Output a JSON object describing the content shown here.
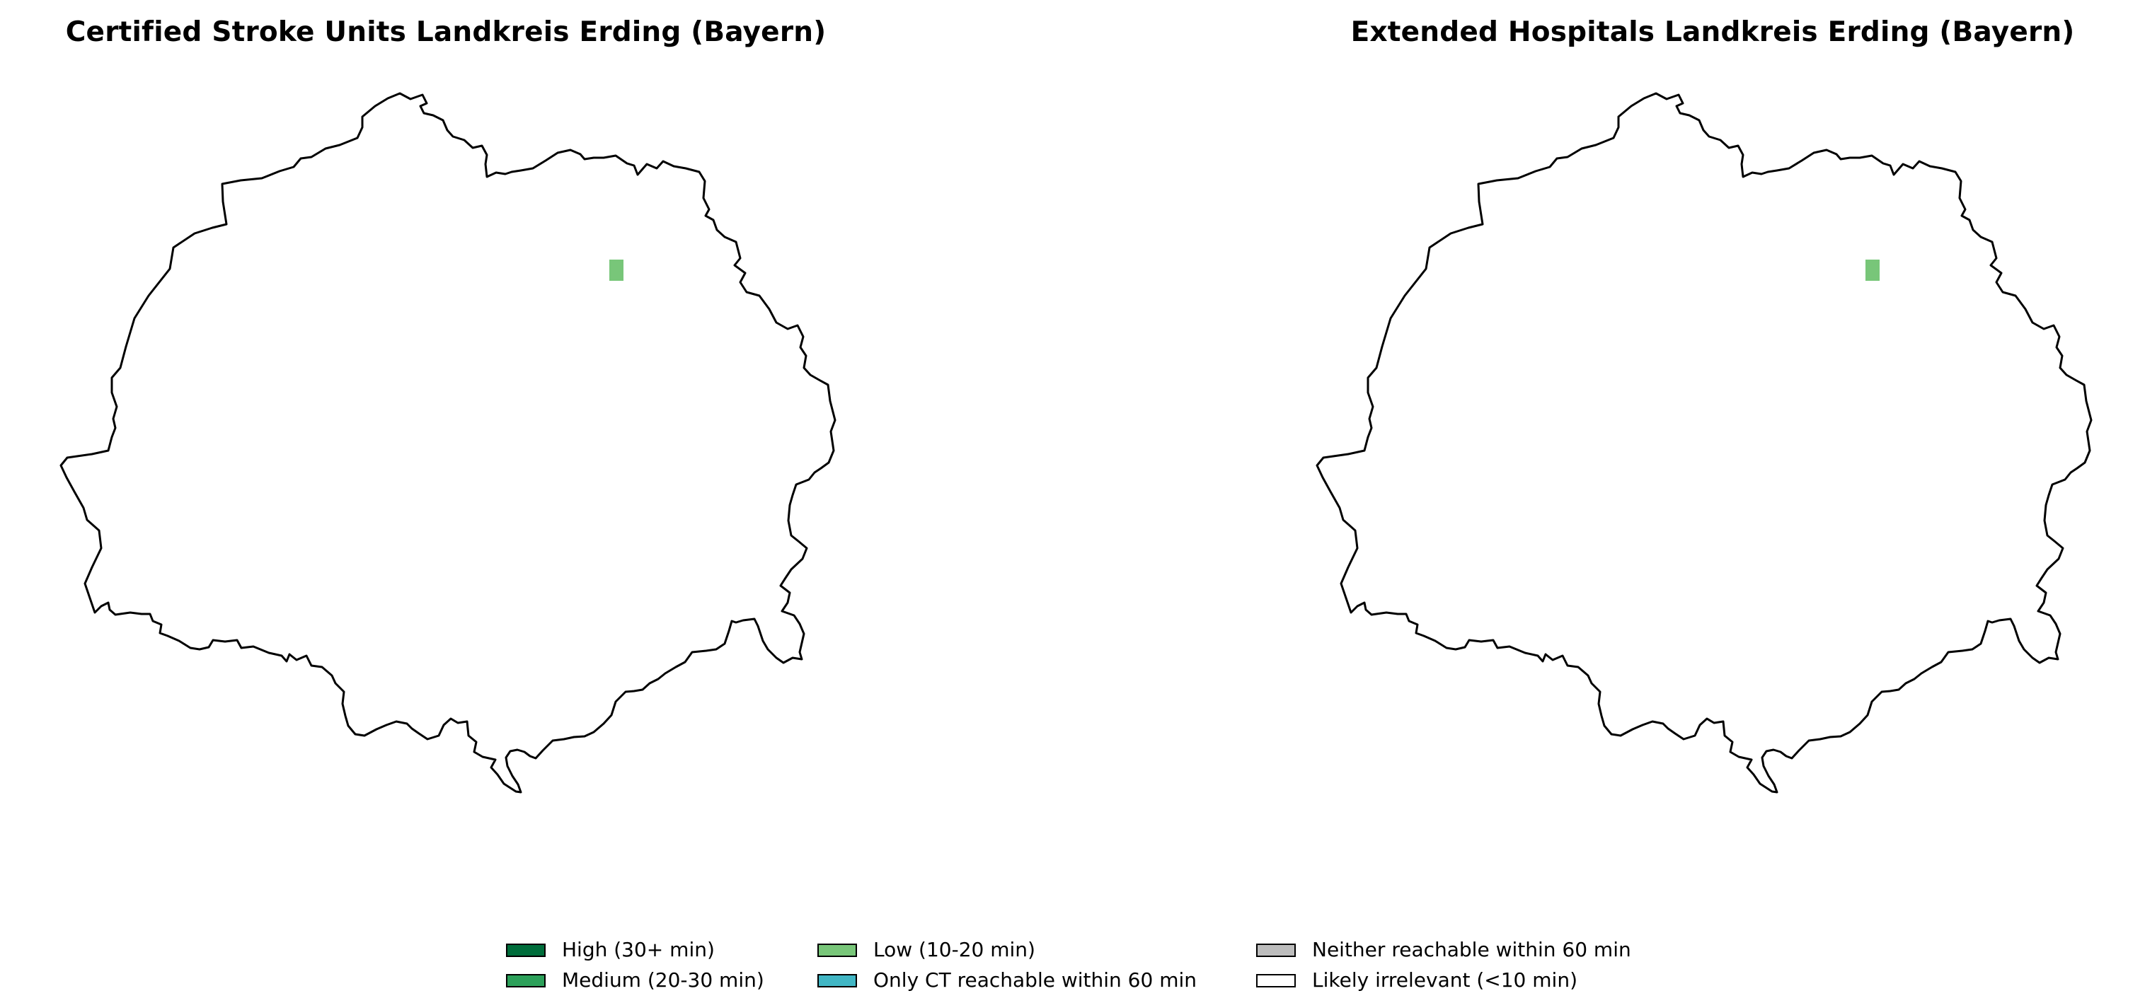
{
  "panels": [
    {
      "title": "Certified Stroke Units Landkreis Erding (Bayern)",
      "cells": [
        {
          "category": "low"
        }
      ]
    },
    {
      "title": "Extended Hospitals Landkreis Erding (Bayern)",
      "cells": [
        {
          "category": "low"
        }
      ]
    }
  ],
  "legend": {
    "items": [
      {
        "key": "high",
        "label": "High (30+ min)",
        "color": "#006d3b"
      },
      {
        "key": "medium",
        "label": "Medium (20-30 min)",
        "color": "#2ca05a"
      },
      {
        "key": "low",
        "label": "Low (10-20 min)",
        "color": "#78c679"
      },
      {
        "key": "ct_only",
        "label": "Only CT reachable within 60 min",
        "color": "#41b6c4"
      },
      {
        "key": "neither",
        "label": "Neither reachable within 60 min",
        "color": "#bdbdbd"
      },
      {
        "key": "irrelevant",
        "label": "Likely irrelevant (<10 min)",
        "color": "#ffffff"
      }
    ]
  },
  "colors": {
    "boundary": "#000000",
    "background": "#ffffff"
  }
}
